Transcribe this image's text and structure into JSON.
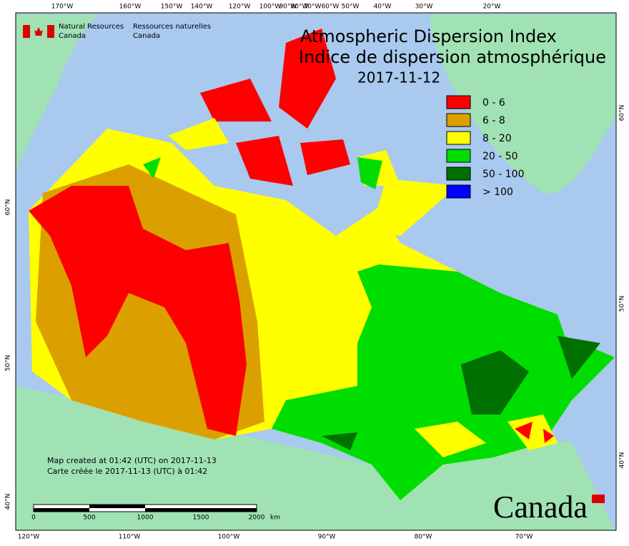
{
  "header": {
    "agency_en": "Natural Resources",
    "agency_en_2": "Canada",
    "agency_fr": "Ressources naturelles",
    "agency_fr_2": "Canada"
  },
  "title": {
    "line1": "Atmospheric Dispersion Index",
    "line2": "Indice de dispersion atmosphérique",
    "date": "2017-11-12"
  },
  "legend": [
    {
      "label": "0 - 6",
      "color": "#ff0000"
    },
    {
      "label": "6 - 8",
      "color": "#dba000"
    },
    {
      "label": "8 - 20",
      "color": "#ffff00"
    },
    {
      "label": "20 - 50",
      "color": "#00dd00"
    },
    {
      "label": "50 - 100",
      "color": "#007000"
    },
    {
      "label": "> 100",
      "color": "#0000ff"
    }
  ],
  "graticule": {
    "top": [
      "170°W",
      "160°W",
      "150°W",
      "140°W",
      "120°W",
      "100°W",
      "90°W",
      "80°W",
      "70°W",
      "60°W",
      "50°W",
      "40°W",
      "30°W",
      "20°W"
    ],
    "bottom": [
      "120°W",
      "110°W",
      "100°W",
      "90°W",
      "80°W",
      "70°W"
    ],
    "left": [
      "60°N",
      "50°N",
      "40°N"
    ],
    "right": [
      "60°N",
      "50°N",
      "40°N"
    ]
  },
  "footer": {
    "created_en": "Map created at 01:42 (UTC) on 2017-11-13",
    "created_fr": "Carte créée le 2017-11-13 (UTC) à 01:42",
    "scale": [
      "0",
      "500",
      "1000",
      "1500",
      "2000"
    ],
    "scale_unit": "km",
    "wordmark": "Canada"
  }
}
